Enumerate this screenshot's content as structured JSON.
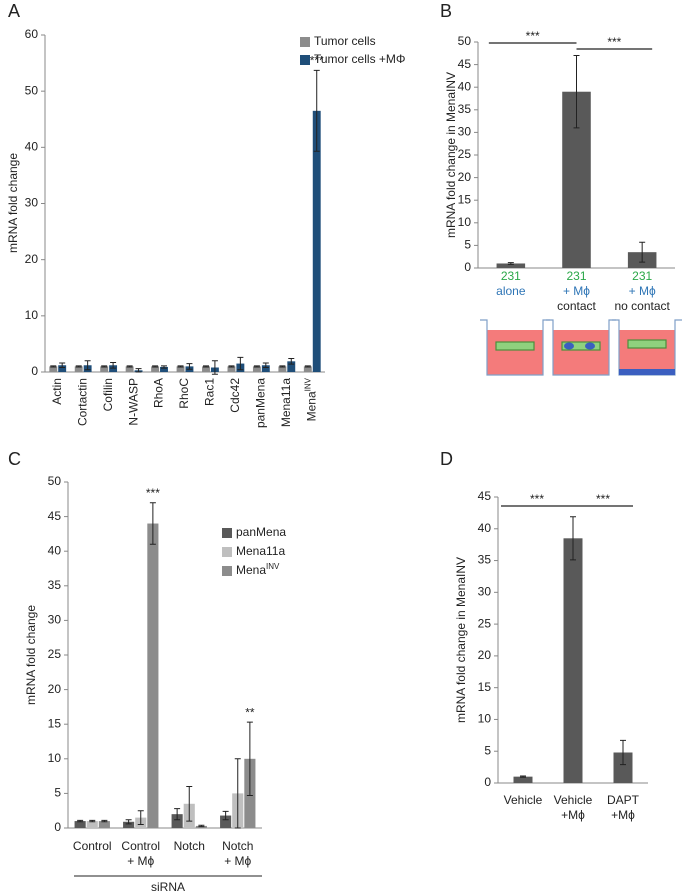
{
  "chart_data": [
    {
      "type": "bar",
      "panel_label": "A",
      "ylabel": "mRNA fold change",
      "categories": [
        "Actin",
        "Cortactin",
        "Cofilin",
        "N-WASP",
        "RhoA",
        "RhoC",
        "Rac1",
        "Cdc42",
        "panMena",
        "Mena11a",
        "MenaINV"
      ],
      "series": [
        {
          "name": "Tumor cells",
          "color": "#8c8c8c",
          "values": [
            1,
            1,
            1,
            1,
            1,
            1,
            1,
            1,
            1,
            1,
            1
          ],
          "errors": [
            0.1,
            0.1,
            0.1,
            0.1,
            0.1,
            0.1,
            0.1,
            0.1,
            0.1,
            0.1,
            0.1
          ]
        },
        {
          "name": "Tumor cells +MΦ",
          "color": "#1f4e79",
          "values": [
            1.2,
            1.2,
            1.2,
            0.3,
            0.9,
            1.0,
            0.8,
            1.5,
            1.2,
            1.9,
            46.5
          ],
          "errors": [
            0.4,
            0.8,
            0.5,
            0.3,
            0.2,
            0.5,
            1.2,
            1.1,
            0.4,
            0.5,
            7.2
          ]
        }
      ],
      "annotations": [
        {
          "text": "***",
          "category": 10,
          "series": 1
        }
      ],
      "ylim": [
        0,
        60
      ],
      "yticks": [
        0,
        10,
        20,
        30,
        40,
        50,
        60
      ]
    },
    {
      "type": "bar",
      "panel_label": "B",
      "ylabel": "mRNA fold change in MenaINV",
      "categories": [
        [
          "231",
          "alone"
        ],
        [
          "231",
          "+ Mϕ",
          "contact"
        ],
        [
          "231",
          "+ Mϕ",
          "no contact"
        ]
      ],
      "label_colors": [
        "#2aa748",
        "#2e75b6",
        "#222222"
      ],
      "color": "#595959",
      "values": [
        1.0,
        39,
        3.5
      ],
      "errors": [
        0.2,
        8,
        2.2
      ],
      "brackets": [
        {
          "text": "***",
          "from": 0,
          "to": 1
        },
        {
          "text": "***",
          "from": 1,
          "to": 2
        }
      ],
      "ylim": [
        0,
        50
      ],
      "yticks": [
        0,
        5,
        10,
        15,
        20,
        25,
        30,
        35,
        40,
        45,
        50
      ]
    },
    {
      "type": "bar",
      "panel_label": "C",
      "ylabel": "mRNA fold change",
      "group_label": "siRNA",
      "categories": [
        [
          "Control"
        ],
        [
          "Control",
          "+ Mϕ"
        ],
        [
          "Notch"
        ],
        [
          "Notch",
          "+ Mϕ"
        ]
      ],
      "series": [
        {
          "name": "panMena",
          "color": "#595959",
          "values": [
            1.0,
            0.9,
            2.0,
            1.8
          ],
          "errors": [
            0.1,
            0.3,
            0.8,
            0.6
          ]
        },
        {
          "name": "Mena11a",
          "color": "#bfbfbf",
          "values": [
            1.0,
            1.5,
            3.5,
            5.0
          ],
          "errors": [
            0.1,
            1.0,
            2.5,
            5.0
          ]
        },
        {
          "name": "MenaINV",
          "color": "#8c8c8c",
          "values": [
            1.0,
            44,
            0.3,
            10
          ],
          "errors": [
            0.1,
            3,
            0.1,
            5.3
          ]
        }
      ],
      "annotations": [
        {
          "text": "***",
          "category": 1,
          "series": 2
        },
        {
          "text": "**",
          "category": 3,
          "series": 2
        }
      ],
      "ylim": [
        0,
        50
      ],
      "yticks": [
        0,
        5,
        10,
        15,
        20,
        25,
        30,
        35,
        40,
        45,
        50
      ]
    },
    {
      "type": "bar",
      "panel_label": "D",
      "ylabel": "mRNA fold change in MenaINV",
      "categories": [
        [
          "Vehicle"
        ],
        [
          "Vehicle",
          "+Mϕ"
        ],
        [
          "DAPT",
          "+Mϕ"
        ]
      ],
      "color": "#595959",
      "values": [
        1.0,
        38.5,
        4.8
      ],
      "errors": [
        0.1,
        3.4,
        1.9
      ],
      "brackets": [
        {
          "text": "***",
          "from": 0,
          "to": 1
        },
        {
          "text": "***",
          "from": 1,
          "to": 2
        }
      ],
      "ylim": [
        0,
        45
      ],
      "yticks": [
        0,
        5,
        10,
        15,
        20,
        25,
        30,
        35,
        40,
        45
      ]
    }
  ]
}
